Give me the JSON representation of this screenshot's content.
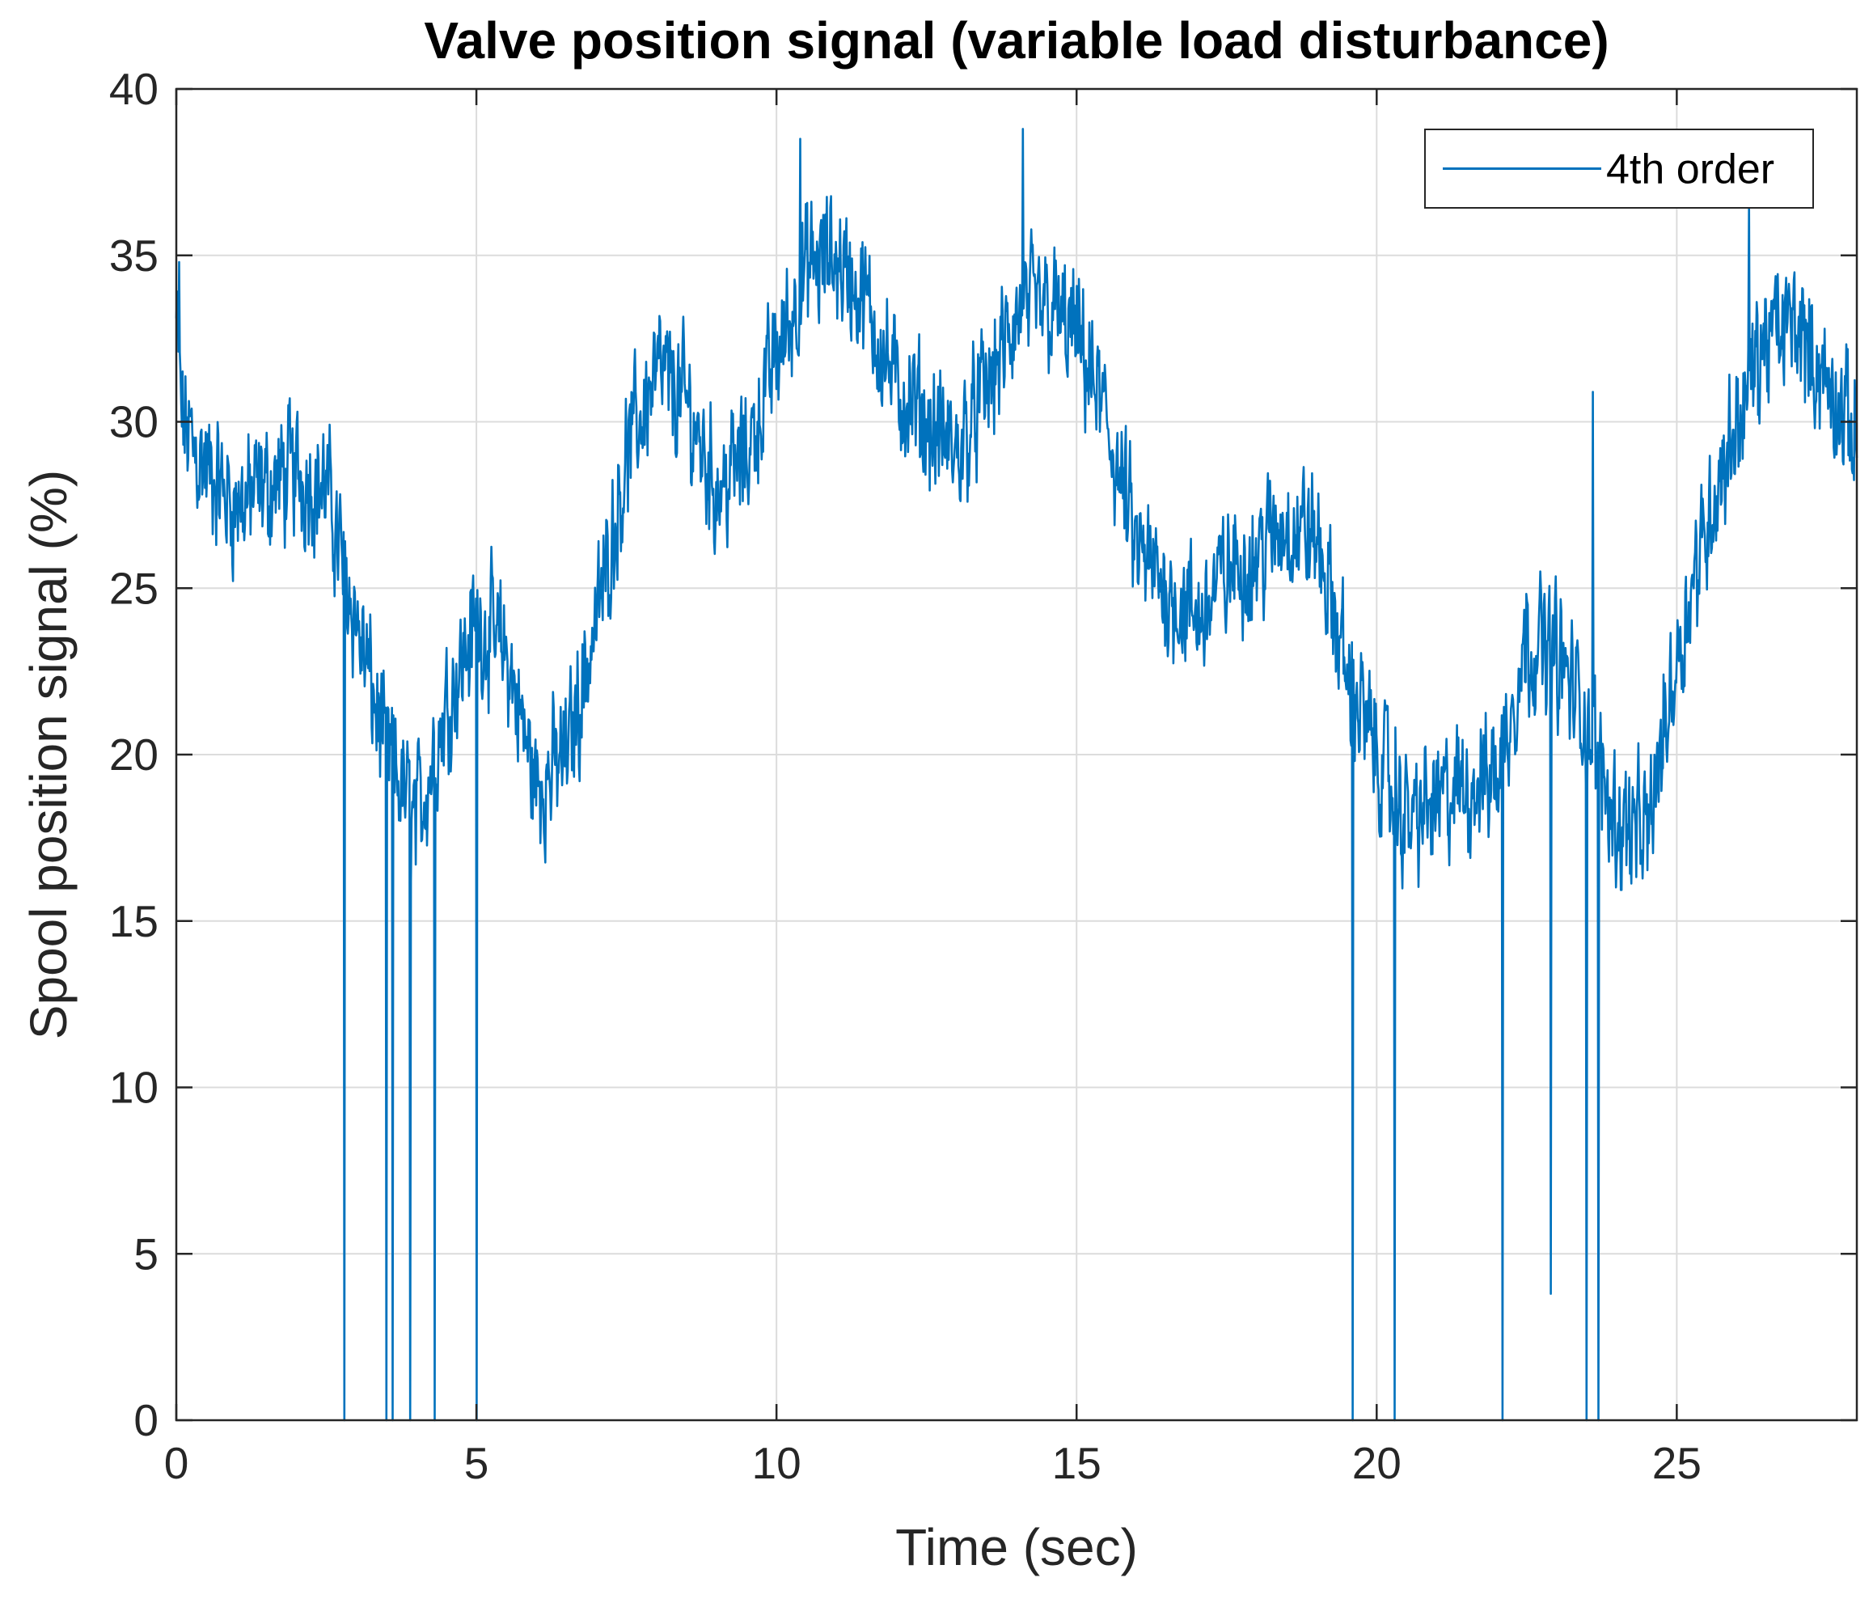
{
  "chart_data": {
    "type": "line",
    "title": "Valve position signal (variable load disturbance)",
    "xlabel": "Time (sec)",
    "ylabel": "Spool position signal (%)",
    "xlim": [
      0,
      28
    ],
    "ylim": [
      0,
      40
    ],
    "x_ticks": [
      0,
      5,
      10,
      15,
      20,
      25
    ],
    "y_ticks": [
      0,
      5,
      10,
      15,
      20,
      25,
      30,
      35,
      40
    ],
    "x_tick_labels": [
      "0",
      "5",
      "10",
      "15",
      "20",
      "25"
    ],
    "y_tick_labels": [
      "0",
      "5",
      "10",
      "15",
      "20",
      "25",
      "30",
      "35",
      "40"
    ],
    "grid": true,
    "legend_position": "top-right",
    "series": [
      {
        "name": "4th order",
        "color": "#0072BD",
        "trend_x": [
          0,
          0.1,
          0.5,
          1.0,
          1.5,
          2.0,
          2.5,
          3.0,
          3.5,
          4.0,
          4.5,
          5.0,
          5.5,
          6.0,
          6.5,
          7.0,
          7.5,
          8.0,
          8.5,
          9.0,
          9.5,
          10.0,
          10.5,
          11.0,
          11.5,
          12.0,
          12.5,
          13.0,
          13.5,
          14.0,
          14.5,
          15.0,
          15.5,
          16.0,
          16.5,
          17.0,
          17.5,
          18.0,
          18.5,
          19.0,
          19.5,
          20.0,
          20.5,
          21.0,
          21.5,
          22.0,
          22.5,
          23.0,
          23.5,
          24.0,
          24.5,
          25.0,
          25.5,
          26.0,
          26.5,
          27.0,
          27.5,
          28.0
        ],
        "trend_y": [
          33,
          30,
          28.5,
          27.5,
          28,
          28.5,
          28,
          24,
          20,
          18,
          21.5,
          24,
          23,
          19,
          20,
          24,
          29,
          31.5,
          30.5,
          28,
          29,
          32,
          34.5,
          35,
          33.5,
          31,
          30,
          29,
          31,
          33,
          33.5,
          32.5,
          30,
          26,
          25,
          24,
          25.5,
          26,
          27,
          26.5,
          22.5,
          20,
          18,
          18.5,
          19,
          19.5,
          23.5,
          23,
          21,
          18,
          17.5,
          23,
          27,
          30,
          32.5,
          33,
          31,
          29.5
        ],
        "noise_amplitude": 2.2,
        "spikes": [
          {
            "x": 0.05,
            "y": 34.8
          },
          {
            "x": 2.8,
            "y": 0
          },
          {
            "x": 3.5,
            "y": 0
          },
          {
            "x": 3.6,
            "y": 0
          },
          {
            "x": 3.9,
            "y": 0
          },
          {
            "x": 4.3,
            "y": 0
          },
          {
            "x": 5.0,
            "y": 0
          },
          {
            "x": 10.4,
            "y": 38.5
          },
          {
            "x": 14.1,
            "y": 38.8
          },
          {
            "x": 19.6,
            "y": 0
          },
          {
            "x": 20.3,
            "y": 0
          },
          {
            "x": 22.1,
            "y": 0
          },
          {
            "x": 22.9,
            "y": 3.8
          },
          {
            "x": 23.5,
            "y": 0
          },
          {
            "x": 23.6,
            "y": 30.9
          },
          {
            "x": 23.7,
            "y": 0
          },
          {
            "x": 26.2,
            "y": 36.6
          }
        ]
      }
    ]
  }
}
